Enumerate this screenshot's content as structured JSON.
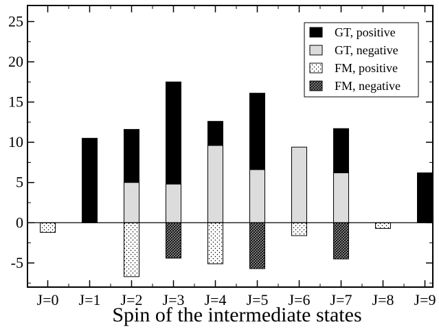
{
  "chart_data": {
    "type": "bar",
    "title": "",
    "xlabel": "Spin of the intermediate states",
    "ylabel": "",
    "ylim": [
      -8,
      27
    ],
    "yticks": [
      -5,
      0,
      5,
      10,
      15,
      20,
      25
    ],
    "ytick_labels": [
      "-5",
      "0",
      "5",
      "10",
      "15",
      "20",
      "25"
    ],
    "grid": false,
    "legend_position": "top-right",
    "categories": [
      "J=0",
      "J=1",
      "J=2",
      "J=3",
      "J=4",
      "J=5",
      "J=6",
      "J=7",
      "J=8",
      "J=9"
    ],
    "stacking": "positive and negative parts are overlaid from zero; GT, negative drawn in front of GT, positive",
    "series": [
      {
        "name": "GT, positive",
        "fill": "#000000",
        "pattern": "solid",
        "values": [
          0,
          10.5,
          11.6,
          17.5,
          12.6,
          16.1,
          0,
          11.7,
          0,
          6.2
        ]
      },
      {
        "name": "GT, negative",
        "fill": "#dcdcdc",
        "pattern": "solid",
        "values": [
          0,
          0,
          5.0,
          4.8,
          9.6,
          6.6,
          9.4,
          6.2,
          0,
          0
        ]
      },
      {
        "name": "FM, positive",
        "fill": "#ffffff",
        "pattern": "dots",
        "values": [
          -1.2,
          0,
          -6.7,
          0,
          -5.1,
          0,
          -1.6,
          0,
          -0.7,
          0
        ]
      },
      {
        "name": "FM, negative",
        "fill": "#888888",
        "pattern": "crosshatch",
        "values": [
          0,
          0,
          0,
          -4.4,
          0,
          -5.7,
          0,
          -4.5,
          0,
          0
        ]
      }
    ]
  }
}
